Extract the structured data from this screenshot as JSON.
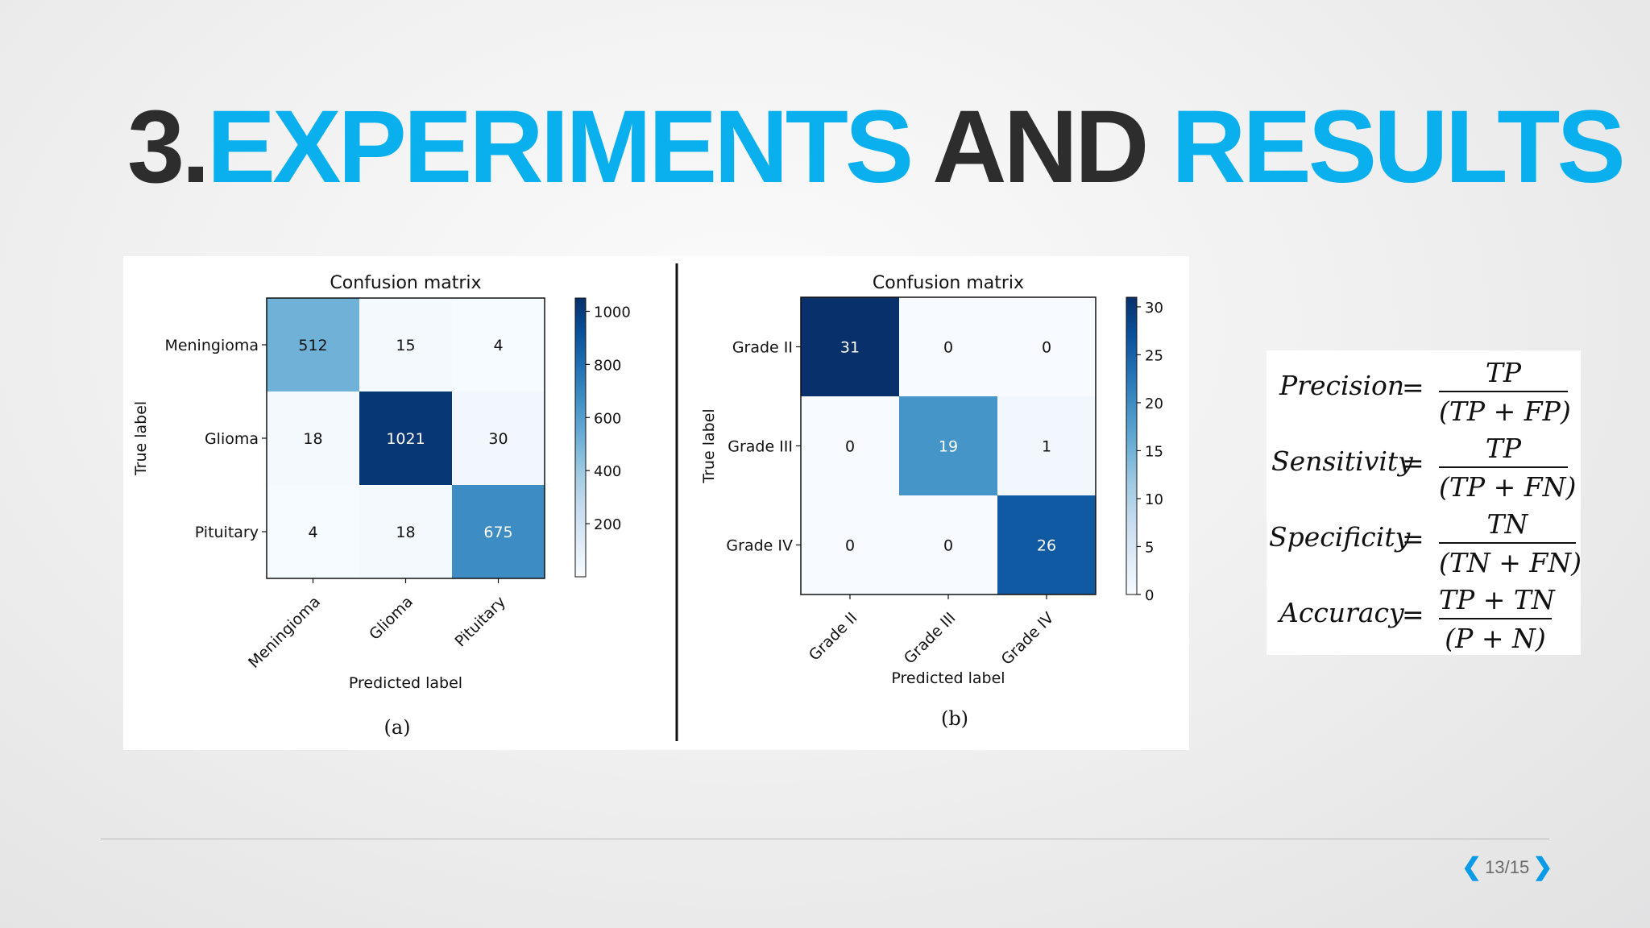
{
  "slide": {
    "title_number": "3.",
    "title_word1": "EXPERIMENTS",
    "title_word2": "AND",
    "title_word3": "RESULTS",
    "colors": {
      "accent": "#0ab0ee",
      "dark": "#2d2d2d",
      "pager_arrow": "#0a9be8"
    }
  },
  "chart_data": [
    {
      "type": "heatmap",
      "title": "Confusion matrix",
      "caption": "(a)",
      "xlabel": "Predicted label",
      "ylabel": "True label",
      "x_categories": [
        "Meningioma",
        "Glioma",
        "Pituitary"
      ],
      "y_categories": [
        "Meningioma",
        "Glioma",
        "Pituitary"
      ],
      "values": [
        [
          512,
          15,
          4
        ],
        [
          18,
          1021,
          30
        ],
        [
          4,
          18,
          675
        ]
      ],
      "colorbar": {
        "min": 0,
        "max": 1050,
        "ticks": [
          1000,
          800,
          600,
          400,
          200
        ]
      },
      "colormap": "Blues"
    },
    {
      "type": "heatmap",
      "title": "Confusion matrix",
      "caption": "(b)",
      "xlabel": "Predicted label",
      "ylabel": "True label",
      "x_categories": [
        "Grade II",
        "Grade III",
        "Grade IV"
      ],
      "y_categories": [
        "Grade II",
        "Grade III",
        "Grade IV"
      ],
      "values": [
        [
          31,
          0,
          0
        ],
        [
          0,
          19,
          1
        ],
        [
          0,
          0,
          26
        ]
      ],
      "colorbar": {
        "min": 0,
        "max": 31,
        "ticks": [
          30,
          25,
          20,
          15,
          10,
          5,
          0
        ]
      },
      "colormap": "Blues"
    }
  ],
  "formulas": [
    {
      "name": "Precision",
      "eq": "=",
      "num": "TP",
      "den": "(TP + FP)"
    },
    {
      "name": "Sensitivity",
      "eq": "=",
      "num": "TP",
      "den": "(TP + FN)"
    },
    {
      "name": "Specificity",
      "eq": "=",
      "num": "TN",
      "den": "(TN + FN)"
    },
    {
      "name": "Accuracy",
      "eq": "=",
      "num": "TP + TN",
      "den": "(P + N)"
    }
  ],
  "pager": {
    "prev_icon": "chevron-left-icon",
    "next_icon": "chevron-right-icon",
    "text": "13/15"
  }
}
